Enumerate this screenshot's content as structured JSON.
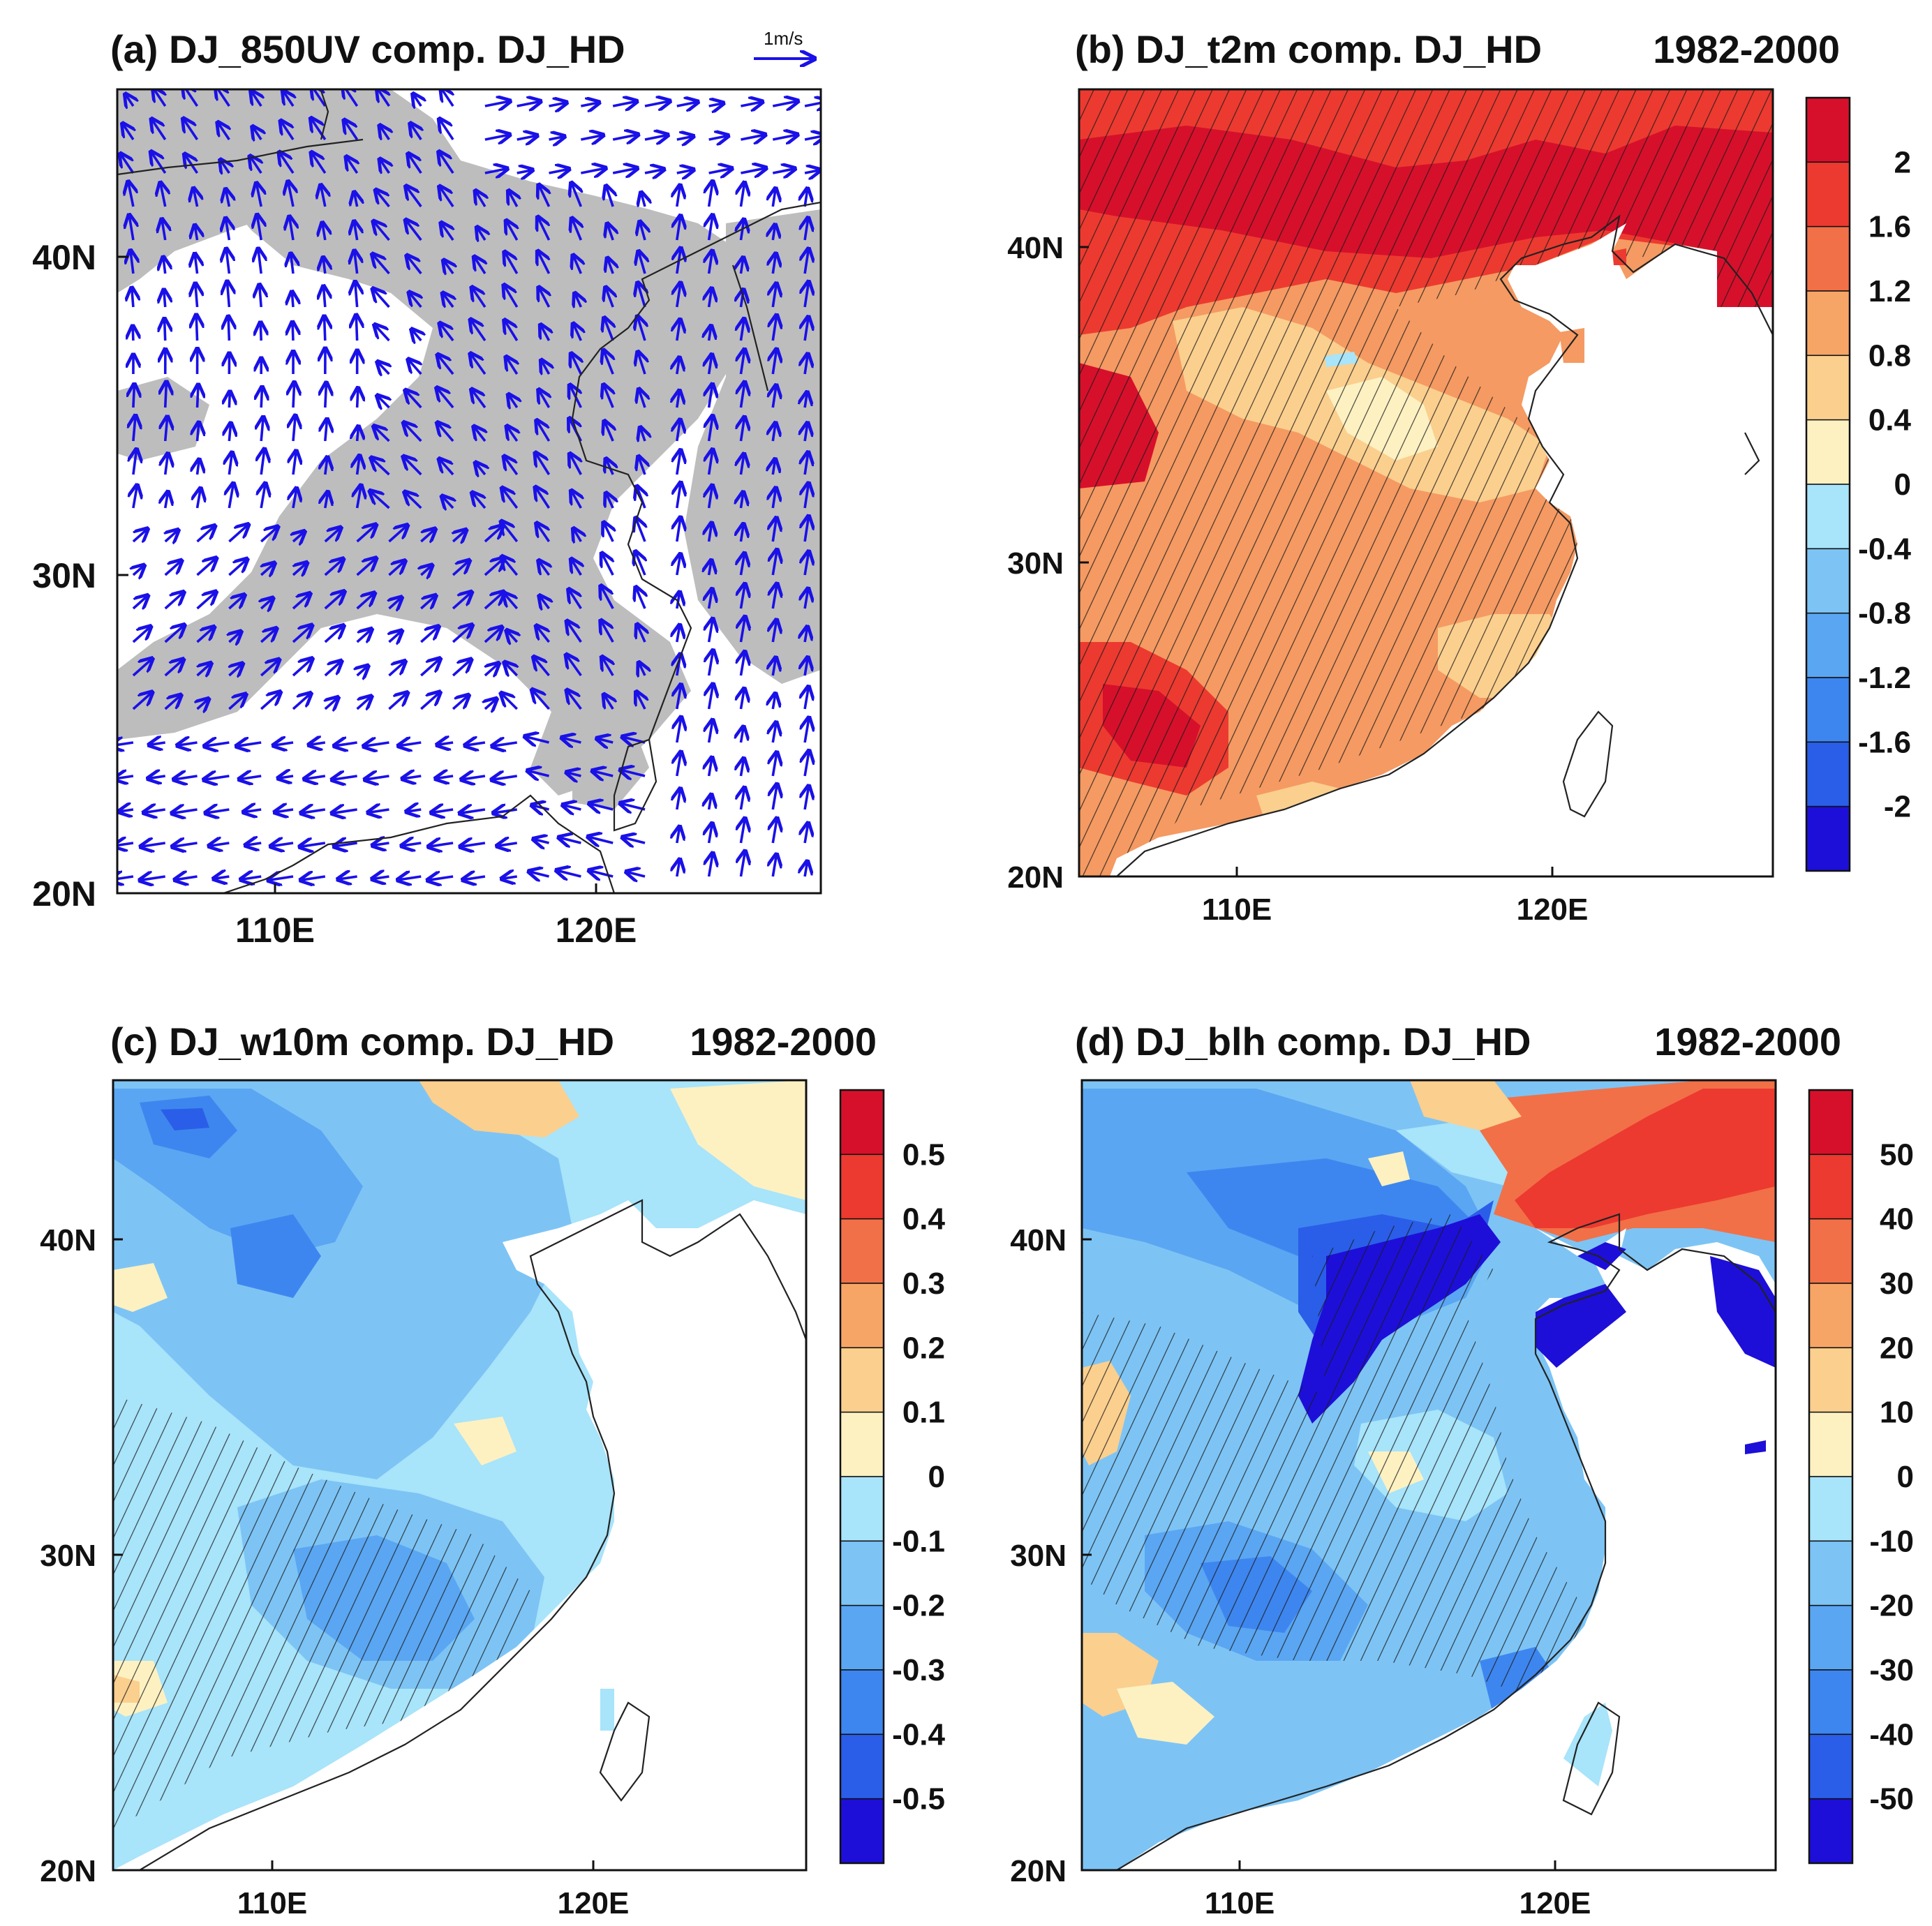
{
  "figure": {
    "panels": [
      {
        "id": "a",
        "title": "(a) DJ_850UV comp. DJ_HD",
        "period": "",
        "ref_vector_label": "1m/s"
      },
      {
        "id": "b",
        "title": "(b) DJ_t2m comp. DJ_HD",
        "period": "1982-2000"
      },
      {
        "id": "c",
        "title": "(c) DJ_w10m comp. DJ_HD",
        "period": "1982-2000"
      },
      {
        "id": "d",
        "title": "(d) DJ_blh comp. DJ_HD",
        "period": "1982-2000"
      }
    ]
  },
  "colors": {
    "vector": "#1a10e8",
    "shade_grey": "#bdbdbd",
    "palette": [
      "#1d0fd8",
      "#2a5ee8",
      "#3e86ef",
      "#5aa6f2",
      "#7dc4f5",
      "#a8e4fa",
      "#fdf1c2",
      "#fbcf8e",
      "#f7a566",
      "#f27047",
      "#ec3a30",
      "#d6102b"
    ]
  },
  "chart_data": [
    {
      "type": "vector_map",
      "title": "(a) DJ_850UV comp. DJ_HD",
      "reference_vector": "1m/s",
      "x_ticks": [
        "110E",
        "120E"
      ],
      "y_ticks": [
        "40N",
        "30N",
        "20N"
      ],
      "xlim": [
        105,
        127
      ],
      "ylim": [
        20,
        45
      ],
      "shading": "significant vectors (grey)"
    },
    {
      "type": "contour_map",
      "title": "(b) DJ_t2m comp. DJ_HD",
      "period": "1982-2000",
      "x_ticks": [
        "110E",
        "120E"
      ],
      "y_ticks": [
        "40N",
        "30N",
        "20N"
      ],
      "xlim": [
        105,
        127
      ],
      "ylim": [
        20,
        45
      ],
      "colorbar_levels": [
        "2",
        "1.6",
        "1.2",
        "0.8",
        "0.4",
        "0",
        "-0.4",
        "-0.8",
        "-1.2",
        "-1.6",
        "-2"
      ],
      "hatching": "significant at 95%"
    },
    {
      "type": "contour_map",
      "title": "(c) DJ_w10m comp. DJ_HD",
      "period": "1982-2000",
      "x_ticks": [
        "110E",
        "120E"
      ],
      "y_ticks": [
        "40N",
        "30N",
        "20N"
      ],
      "xlim": [
        105,
        127
      ],
      "ylim": [
        20,
        45
      ],
      "colorbar_levels": [
        "0.5",
        "0.4",
        "0.3",
        "0.2",
        "0.1",
        "0",
        "-0.1",
        "-0.2",
        "-0.3",
        "-0.4",
        "-0.5"
      ]
    },
    {
      "type": "contour_map",
      "title": "(d) DJ_blh comp. DJ_HD",
      "period": "1982-2000",
      "x_ticks": [
        "110E",
        "120E"
      ],
      "y_ticks": [
        "40N",
        "30N",
        "20N"
      ],
      "xlim": [
        105,
        127
      ],
      "ylim": [
        20,
        45
      ],
      "colorbar_levels": [
        "50",
        "40",
        "30",
        "20",
        "10",
        "0",
        "-10",
        "-20",
        "-30",
        "-40",
        "-50"
      ]
    }
  ]
}
